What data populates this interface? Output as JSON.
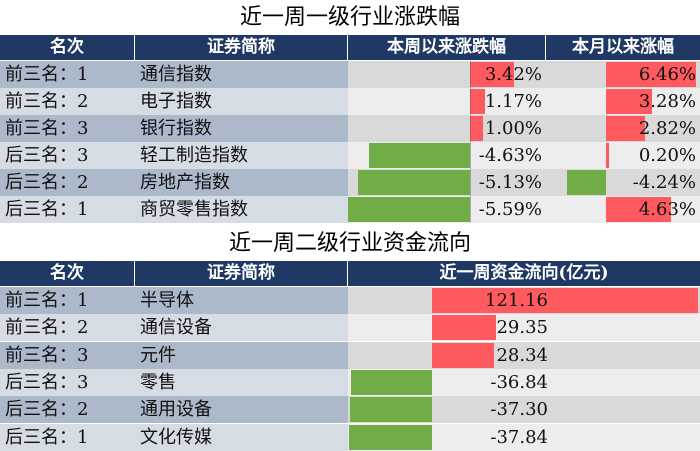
{
  "table1": {
    "title": "近一周一级行业涨跌幅",
    "headers": {
      "rank": "名次",
      "name": "证券简称",
      "week": "本周以来涨跌幅",
      "month": "本月以来涨幅"
    },
    "rows": [
      {
        "rank": "前三名：1",
        "name": "通信指数",
        "week": 3.42,
        "week_label": "3.42%",
        "month": 6.46,
        "month_label": "6.46%"
      },
      {
        "rank": "前三名：2",
        "name": "电子指数",
        "week": 1.17,
        "week_label": "1.17%",
        "month": 3.28,
        "month_label": "3.28%"
      },
      {
        "rank": "前三名：3",
        "name": "银行指数",
        "week": 1.0,
        "week_label": "1.00%",
        "month": 2.82,
        "month_label": "2.82%"
      },
      {
        "rank": "后三名：3",
        "name": "轻工制造指数",
        "week": -4.63,
        "week_label": "-4.63%",
        "month": 0.2,
        "month_label": "0.20%"
      },
      {
        "rank": "后三名：2",
        "name": "房地产指数",
        "week": -5.13,
        "week_label": "-5.13%",
        "month": -4.24,
        "month_label": "-4.24%"
      },
      {
        "rank": "后三名：1",
        "name": "商贸零售指数",
        "week": -5.59,
        "week_label": "-5.59%",
        "month": 4.63,
        "month_label": "4.63%"
      }
    ]
  },
  "table2": {
    "title": "近一周二级行业资金流向",
    "headers": {
      "rank": "名次",
      "name": "证券简称",
      "flow": "近一周资金流向(亿元)"
    },
    "rows": [
      {
        "rank": "前三名：1",
        "name": "半导体",
        "flow": 121.16,
        "flow_label": "121.16"
      },
      {
        "rank": "前三名：2",
        "name": "通信设备",
        "flow": 29.35,
        "flow_label": "29.35"
      },
      {
        "rank": "前三名：3",
        "name": "元件",
        "flow": 28.34,
        "flow_label": "28.34"
      },
      {
        "rank": "后三名：3",
        "name": "零售",
        "flow": -36.84,
        "flow_label": "-36.84"
      },
      {
        "rank": "后三名：2",
        "name": "通用设备",
        "flow": -37.3,
        "flow_label": "-37.30"
      },
      {
        "rank": "后三名：1",
        "name": "文化传媒",
        "flow": -37.84,
        "flow_label": "-37.84"
      }
    ]
  },
  "colors": {
    "header": "#1f3864",
    "positive": "#ff5a5f",
    "negative": "#70ad47"
  },
  "chart_data": [
    {
      "type": "bar",
      "title": "近一周一级行业涨跌幅",
      "categories": [
        "通信指数",
        "电子指数",
        "银行指数",
        "轻工制造指数",
        "房地产指数",
        "商贸零售指数"
      ],
      "series": [
        {
          "name": "本周以来涨跌幅",
          "values": [
            3.42,
            1.17,
            1.0,
            -4.63,
            -5.13,
            -5.59
          ]
        },
        {
          "name": "本月以来涨幅",
          "values": [
            6.46,
            3.28,
            2.82,
            0.2,
            -4.24,
            4.63
          ]
        }
      ]
    },
    {
      "type": "bar",
      "title": "近一周二级行业资金流向",
      "categories": [
        "半导体",
        "通信设备",
        "元件",
        "零售",
        "通用设备",
        "文化传媒"
      ],
      "series": [
        {
          "name": "近一周资金流向(亿元)",
          "values": [
            121.16,
            29.35,
            28.34,
            -36.84,
            -37.3,
            -37.84
          ]
        }
      ]
    }
  ]
}
